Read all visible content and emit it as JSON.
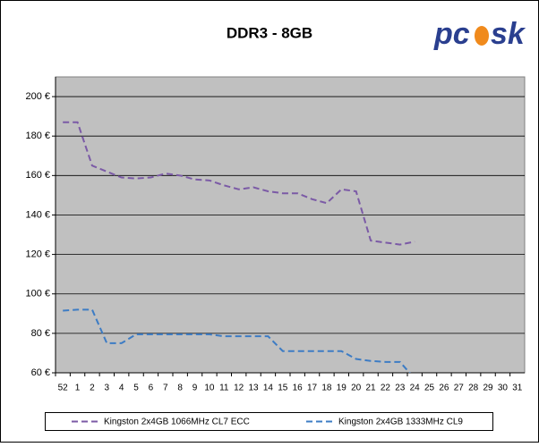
{
  "chart_data": {
    "type": "line",
    "title": "DDR3 - 8GB",
    "logo": [
      "pc",
      "sk"
    ],
    "categories": [
      "52",
      "1",
      "2",
      "3",
      "4",
      "5",
      "6",
      "7",
      "8",
      "9",
      "10",
      "11",
      "12",
      "13",
      "14",
      "15",
      "16",
      "17",
      "18",
      "19",
      "20",
      "21",
      "22",
      "23",
      "24",
      "25",
      "26",
      "27",
      "28",
      "29",
      "30",
      "31"
    ],
    "series": [
      {
        "name": "Kingston 2x4GB 1066MHz CL7 ECC",
        "color": "#7b5aa6",
        "values": [
          187,
          187,
          165,
          162,
          159,
          158.5,
          159,
          161,
          160,
          158,
          157.5,
          155,
          153,
          154,
          152,
          151,
          151,
          148,
          146,
          153,
          152,
          127,
          126,
          125,
          126.5,
          null,
          null,
          null,
          null,
          null,
          null,
          null
        ]
      },
      {
        "name": "Kingston 2x4GB 1333MHz CL9",
        "color": "#3d7cc4",
        "values": [
          91.5,
          92,
          92,
          75,
          75,
          79.5,
          79.5,
          79.5,
          79.5,
          79.5,
          79.5,
          78.5,
          78.5,
          78.5,
          78.5,
          71,
          71,
          71,
          71,
          71,
          67,
          66,
          65.5,
          65.5,
          57,
          null,
          null,
          null,
          null,
          null,
          null,
          null
        ]
      }
    ],
    "ylim": [
      60,
      210
    ],
    "yticks": [
      {
        "value": 60,
        "label": "60 €"
      },
      {
        "value": 80,
        "label": "80 €"
      },
      {
        "value": 100,
        "label": "100 €"
      },
      {
        "value": 120,
        "label": "120 €"
      },
      {
        "value": 140,
        "label": "140 €"
      },
      {
        "value": 160,
        "label": "160 €"
      },
      {
        "value": 180,
        "label": "180 €"
      },
      {
        "value": 200,
        "label": "200 €"
      }
    ],
    "grid": true,
    "legend": "bottom",
    "plot_color": "#c0c0c0"
  }
}
